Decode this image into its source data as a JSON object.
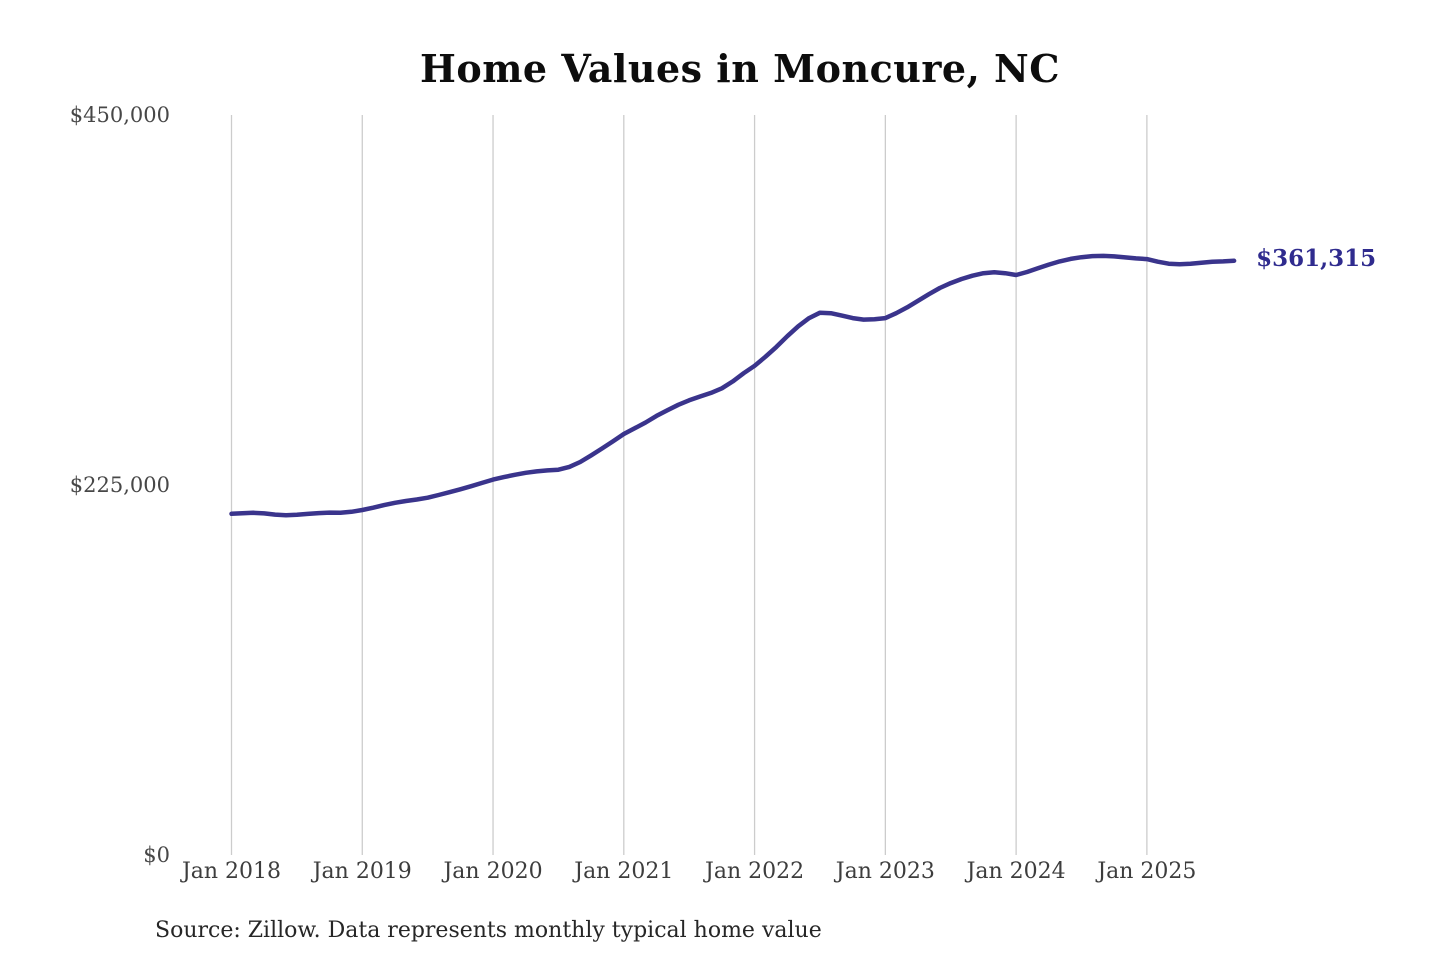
{
  "header": {
    "title": "Home Values in Moncure, NC"
  },
  "footer": {
    "source": "Source: Zillow. Data represents monthly typical home value"
  },
  "colors": {
    "line": "#3a348c",
    "grid": "#cccccc",
    "end_label": "#2f2b8e",
    "background": "#ffffff"
  },
  "chart_data": {
    "type": "line",
    "title": "Home Values in Moncure, NC",
    "xlabel": "",
    "ylabel": "",
    "ylim": [
      0,
      450000
    ],
    "grid": "vertical-only",
    "legend_position": "none",
    "end_label": "$361,315",
    "final_value": 361315,
    "y_ticks": [
      {
        "value": 0,
        "label": "$0"
      },
      {
        "value": 225000,
        "label": "$225,000"
      },
      {
        "value": 450000,
        "label": "$450,000"
      }
    ],
    "x_ticks": [
      {
        "month_index": 0,
        "label": "Jan 2018"
      },
      {
        "month_index": 12,
        "label": "Jan 2019"
      },
      {
        "month_index": 24,
        "label": "Jan 2020"
      },
      {
        "month_index": 36,
        "label": "Jan 2021"
      },
      {
        "month_index": 48,
        "label": "Jan 2022"
      },
      {
        "month_index": 60,
        "label": "Jan 2023"
      },
      {
        "month_index": 72,
        "label": "Jan 2024"
      },
      {
        "month_index": 84,
        "label": "Jan 2025"
      }
    ],
    "x": [
      "2018-01",
      "2018-02",
      "2018-03",
      "2018-04",
      "2018-05",
      "2018-06",
      "2018-07",
      "2018-08",
      "2018-09",
      "2018-10",
      "2018-11",
      "2018-12",
      "2019-01",
      "2019-02",
      "2019-03",
      "2019-04",
      "2019-05",
      "2019-06",
      "2019-07",
      "2019-08",
      "2019-09",
      "2019-10",
      "2019-11",
      "2019-12",
      "2020-01",
      "2020-02",
      "2020-03",
      "2020-04",
      "2020-05",
      "2020-06",
      "2020-07",
      "2020-08",
      "2020-09",
      "2020-10",
      "2020-11",
      "2020-12",
      "2021-01",
      "2021-02",
      "2021-03",
      "2021-04",
      "2021-05",
      "2021-06",
      "2021-07",
      "2021-08",
      "2021-09",
      "2021-10",
      "2021-11",
      "2021-12",
      "2022-01",
      "2022-02",
      "2022-03",
      "2022-04",
      "2022-05",
      "2022-06",
      "2022-07",
      "2022-08",
      "2022-09",
      "2022-10",
      "2022-11",
      "2022-12",
      "2023-01",
      "2023-02",
      "2023-03",
      "2023-04",
      "2023-05",
      "2023-06",
      "2023-07",
      "2023-08",
      "2023-09",
      "2023-10",
      "2023-11",
      "2023-12",
      "2024-01",
      "2024-02",
      "2024-03",
      "2024-04",
      "2024-05",
      "2024-06",
      "2024-07",
      "2024-08",
      "2024-09",
      "2024-10",
      "2024-11",
      "2024-12",
      "2025-01",
      "2025-02",
      "2025-03",
      "2025-04",
      "2025-05",
      "2025-06",
      "2025-07",
      "2025-08",
      "2025-09"
    ],
    "values": [
      207500,
      207800,
      208100,
      207700,
      207000,
      206600,
      206900,
      207400,
      207900,
      208200,
      208100,
      208700,
      209800,
      211200,
      212800,
      214200,
      215300,
      216200,
      217300,
      218900,
      220600,
      222400,
      224300,
      226300,
      228300,
      229800,
      231200,
      232400,
      233300,
      233900,
      234300,
      236000,
      239000,
      243000,
      247200,
      251500,
      256000,
      259500,
      263000,
      267000,
      270500,
      273800,
      276500,
      278800,
      281000,
      283800,
      288000,
      293000,
      297500,
      303000,
      309000,
      315500,
      321500,
      326500,
      329800,
      329500,
      328000,
      326500,
      325600,
      325800,
      326500,
      329500,
      333000,
      337000,
      341000,
      344800,
      347800,
      350300,
      352300,
      353800,
      354400,
      353800,
      352700,
      354500,
      356800,
      359000,
      361000,
      362500,
      363500,
      364200,
      364300,
      364000,
      363400,
      362800,
      362400,
      360800,
      359600,
      359200,
      359500,
      360200,
      360800,
      361000,
      361315
    ]
  }
}
